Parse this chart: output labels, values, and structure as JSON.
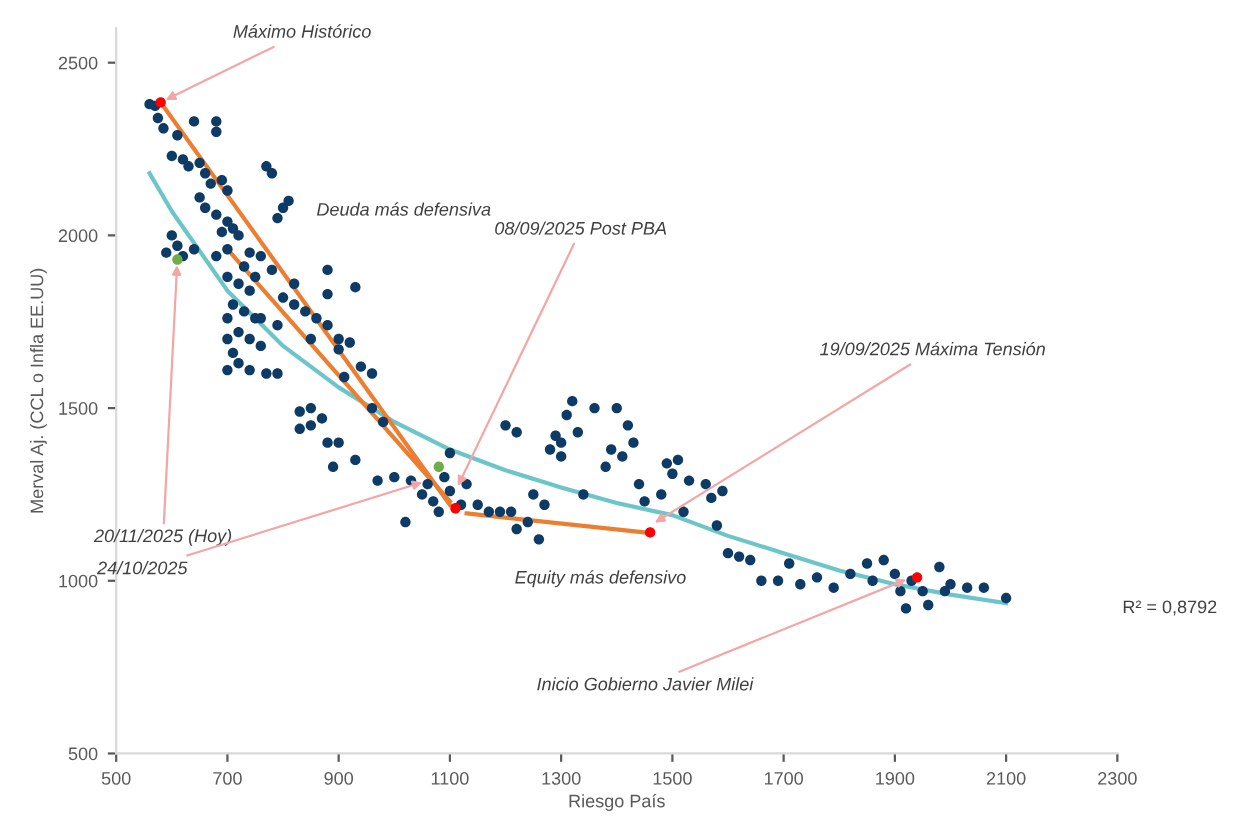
{
  "chart_data": {
    "type": "scatter",
    "xlabel": "Riesgo País",
    "ylabel": "Merval Aj. (CCL o Infla EE.UU)",
    "xlim": [
      500,
      2300
    ],
    "xticks": [
      500,
      700,
      900,
      1100,
      1300,
      1500,
      1700,
      1900,
      2100,
      2300
    ],
    "ylim": [
      500,
      2600
    ],
    "yticks": [
      500,
      1000,
      1500,
      2000,
      2500
    ],
    "grid": false,
    "series": [
      {
        "color": "#0d3b66",
        "x": [
          560,
          570,
          575,
          585,
          610,
          640,
          600,
          620,
          630,
          650,
          660,
          670,
          690,
          700,
          650,
          660,
          680,
          700,
          690,
          710,
          720,
          600,
          610,
          620,
          590,
          640,
          680,
          700,
          740,
          760,
          780,
          700,
          720,
          740,
          710,
          730,
          750,
          700,
          720,
          740,
          760,
          700,
          710,
          720,
          740,
          770,
          790,
          700,
          760,
          790,
          800,
          820,
          840,
          860,
          850,
          880,
          900,
          900,
          920,
          940,
          960,
          910,
          820,
          880,
          770,
          780,
          800,
          790,
          810,
          680,
          680,
          880,
          930,
          730,
          750,
          830,
          830,
          850,
          850,
          870,
          880,
          890,
          900,
          930,
          960,
          980,
          1000,
          970,
          1020,
          1030,
          1050,
          1060,
          1070,
          1080,
          1090,
          1100,
          1100,
          1120,
          1130,
          1150,
          1170,
          1190,
          1200,
          1220,
          1210,
          1220,
          1240,
          1250,
          1270,
          1260,
          1280,
          1290,
          1300,
          1310,
          1320,
          1300,
          1330,
          1340,
          1360,
          1380,
          1390,
          1400,
          1410,
          1420,
          1430,
          1440,
          1450,
          1480,
          1490,
          1500,
          1510,
          1520,
          1530,
          1560,
          1570,
          1580,
          1590,
          1600,
          1620,
          1640,
          1660,
          1690,
          1710,
          1730,
          1760,
          1790,
          1820,
          1850,
          1860,
          1880,
          1900,
          1910,
          1920,
          1930,
          1950,
          1960,
          1980,
          1990,
          2000,
          2030,
          2060,
          2100
        ],
        "values": [
          2380,
          2375,
          2340,
          2310,
          2290,
          2330,
          2230,
          2220,
          2200,
          2210,
          2180,
          2150,
          2160,
          2130,
          2110,
          2080,
          2060,
          2040,
          2010,
          2020,
          2000,
          2000,
          1970,
          1940,
          1950,
          1960,
          1940,
          1960,
          1950,
          1940,
          1900,
          1880,
          1860,
          1840,
          1800,
          1780,
          1760,
          1760,
          1720,
          1700,
          1680,
          1700,
          1660,
          1630,
          1610,
          1600,
          1600,
          1610,
          1760,
          1740,
          1820,
          1800,
          1780,
          1760,
          1700,
          1740,
          1670,
          1700,
          1690,
          1620,
          1600,
          1590,
          1860,
          1830,
          2200,
          2180,
          2080,
          2050,
          2100,
          2330,
          2300,
          1900,
          1850,
          1910,
          1880,
          1490,
          1440,
          1450,
          1500,
          1470,
          1400,
          1330,
          1400,
          1350,
          1500,
          1460,
          1300,
          1290,
          1170,
          1290,
          1250,
          1280,
          1230,
          1200,
          1300,
          1260,
          1370,
          1220,
          1280,
          1220,
          1200,
          1200,
          1450,
          1430,
          1200,
          1150,
          1170,
          1250,
          1220,
          1120,
          1380,
          1420,
          1400,
          1480,
          1520,
          1360,
          1430,
          1250,
          1500,
          1330,
          1380,
          1500,
          1360,
          1450,
          1400,
          1280,
          1230,
          1250,
          1340,
          1310,
          1350,
          1200,
          1290,
          1280,
          1240,
          1160,
          1260,
          1080,
          1070,
          1060,
          1000,
          1000,
          1050,
          990,
          1010,
          980,
          1020,
          1050,
          1000,
          1060,
          1020,
          970,
          920,
          1000,
          970,
          930,
          1040,
          970,
          990,
          980,
          980,
          950
        ]
      },
      {
        "color": "#ff0000",
        "x": [
          580,
          1110,
          1460,
          1940
        ],
        "values": [
          2385,
          1210,
          1140,
          1010
        ]
      },
      {
        "color": "#70ad47",
        "x": [
          610,
          1080
        ],
        "values": [
          1930,
          1330
        ]
      },
      {
        "type": "line",
        "color": "#6cc5c8",
        "marker": "none",
        "x": [
          560,
          600,
          700,
          800,
          900,
          1000,
          1100,
          1200,
          1300,
          1400,
          1500,
          1600,
          1700,
          1800,
          1900,
          2000,
          2100
        ],
        "values": [
          2180,
          2070,
          1840,
          1680,
          1560,
          1460,
          1380,
          1320,
          1270,
          1225,
          1190,
          1130,
          1080,
          1030,
          990,
          960,
          935
        ]
      },
      {
        "type": "line",
        "color": "#ed7d31",
        "marker": "none",
        "x": [
          580,
          1100
        ],
        "values": [
          2385,
          1220
        ]
      },
      {
        "type": "line",
        "color": "#ed7d31",
        "marker": "none",
        "x": [
          1100,
          700
        ],
        "values": [
          1230,
          1960
        ]
      },
      {
        "type": "line",
        "color": "#ed7d31",
        "marker": "none",
        "x": [
          1130,
          1450
        ],
        "values": [
          1195,
          1140
        ]
      }
    ],
    "annotations": [
      {
        "text": "Máximo Histórico",
        "x": 580,
        "y": 2385
      },
      "Deuda más defensiva",
      {
        "text": "08/09/2025 Post PBA",
        "x": 1110,
        "y": 1260
      },
      {
        "text": "19/09/2025 Máxima Tensión",
        "x": 1460,
        "y": 1160
      },
      {
        "text": "20/11/2025 (Hoy)",
        "x": 610,
        "y": 1930
      },
      {
        "text": "24/10/2025",
        "x": 1060,
        "y": 1290
      },
      "Equity más defensivo",
      {
        "text": "Inicio Gobierno Javier Milei",
        "x": 1930,
        "y": 1010
      },
      "R² = 0,8792"
    ]
  }
}
